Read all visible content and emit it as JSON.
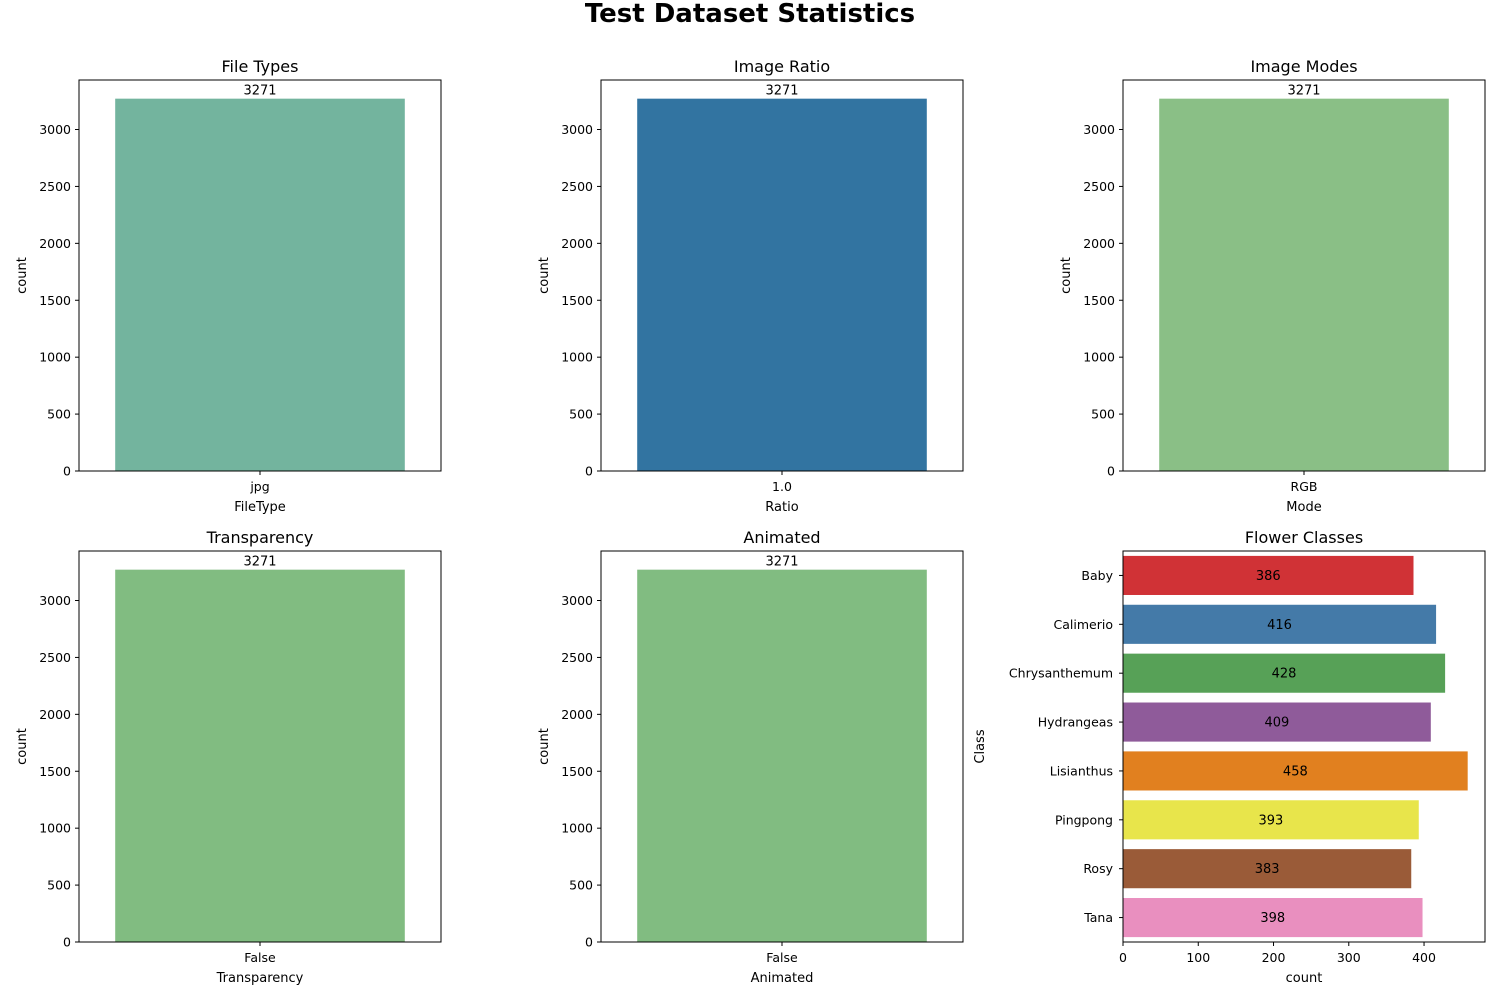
{
  "figure": {
    "title": "Test Dataset Statistics"
  },
  "chart_data": [
    {
      "type": "bar",
      "title": "File Types",
      "xlabel": "FileType",
      "ylabel": "count",
      "categories": [
        "jpg"
      ],
      "values": [
        3271
      ],
      "data_labels": [
        "3271"
      ],
      "colors": [
        "#73b49e"
      ],
      "ylim": [
        0,
        3435
      ],
      "yticks": [
        0,
        500,
        1000,
        1500,
        2000,
        2500,
        3000
      ],
      "grid": false
    },
    {
      "type": "bar",
      "title": "Image Ratio",
      "xlabel": "Ratio",
      "ylabel": "count",
      "categories": [
        "1.0"
      ],
      "values": [
        3271
      ],
      "data_labels": [
        "3271"
      ],
      "colors": [
        "#3274a1"
      ],
      "ylim": [
        0,
        3435
      ],
      "yticks": [
        0,
        500,
        1000,
        1500,
        2000,
        2500,
        3000
      ],
      "grid": false
    },
    {
      "type": "bar",
      "title": "Image Modes",
      "xlabel": "Mode",
      "ylabel": "count",
      "categories": [
        "RGB"
      ],
      "values": [
        3271
      ],
      "data_labels": [
        "3271"
      ],
      "colors": [
        "#8abf86"
      ],
      "ylim": [
        0,
        3435
      ],
      "yticks": [
        0,
        500,
        1000,
        1500,
        2000,
        2500,
        3000
      ],
      "grid": false
    },
    {
      "type": "bar",
      "title": "Transparency",
      "xlabel": "Transparency",
      "ylabel": "count",
      "categories": [
        "False"
      ],
      "values": [
        3271
      ],
      "data_labels": [
        "3271"
      ],
      "colors": [
        "#81bc81"
      ],
      "ylim": [
        0,
        3435
      ],
      "yticks": [
        0,
        500,
        1000,
        1500,
        2000,
        2500,
        3000
      ],
      "grid": false
    },
    {
      "type": "bar",
      "title": "Animated",
      "xlabel": "Animated",
      "ylabel": "count",
      "categories": [
        "False"
      ],
      "values": [
        3271
      ],
      "data_labels": [
        "3271"
      ],
      "colors": [
        "#81bc81"
      ],
      "ylim": [
        0,
        3435
      ],
      "yticks": [
        0,
        500,
        1000,
        1500,
        2000,
        2500,
        3000
      ],
      "grid": false
    },
    {
      "type": "barh",
      "title": "Flower Classes",
      "xlabel": "count",
      "ylabel": "Class",
      "categories": [
        "Baby",
        "Calimerio",
        "Chrysanthemum",
        "Hydrangeas",
        "Lisianthus",
        "Pingpong",
        "Rosy",
        "Tana"
      ],
      "values": [
        386,
        416,
        428,
        409,
        458,
        393,
        383,
        398
      ],
      "data_labels": [
        "386",
        "416",
        "428",
        "409",
        "458",
        "393",
        "383",
        "398"
      ],
      "colors": [
        "#d03236",
        "#447aa8",
        "#57a157",
        "#8f5b9a",
        "#e1801f",
        "#e8e54b",
        "#9a5b38",
        "#e98fbf"
      ],
      "xlim": [
        0,
        481
      ],
      "xticks": [
        0,
        100,
        200,
        300,
        400
      ],
      "grid": false
    }
  ]
}
